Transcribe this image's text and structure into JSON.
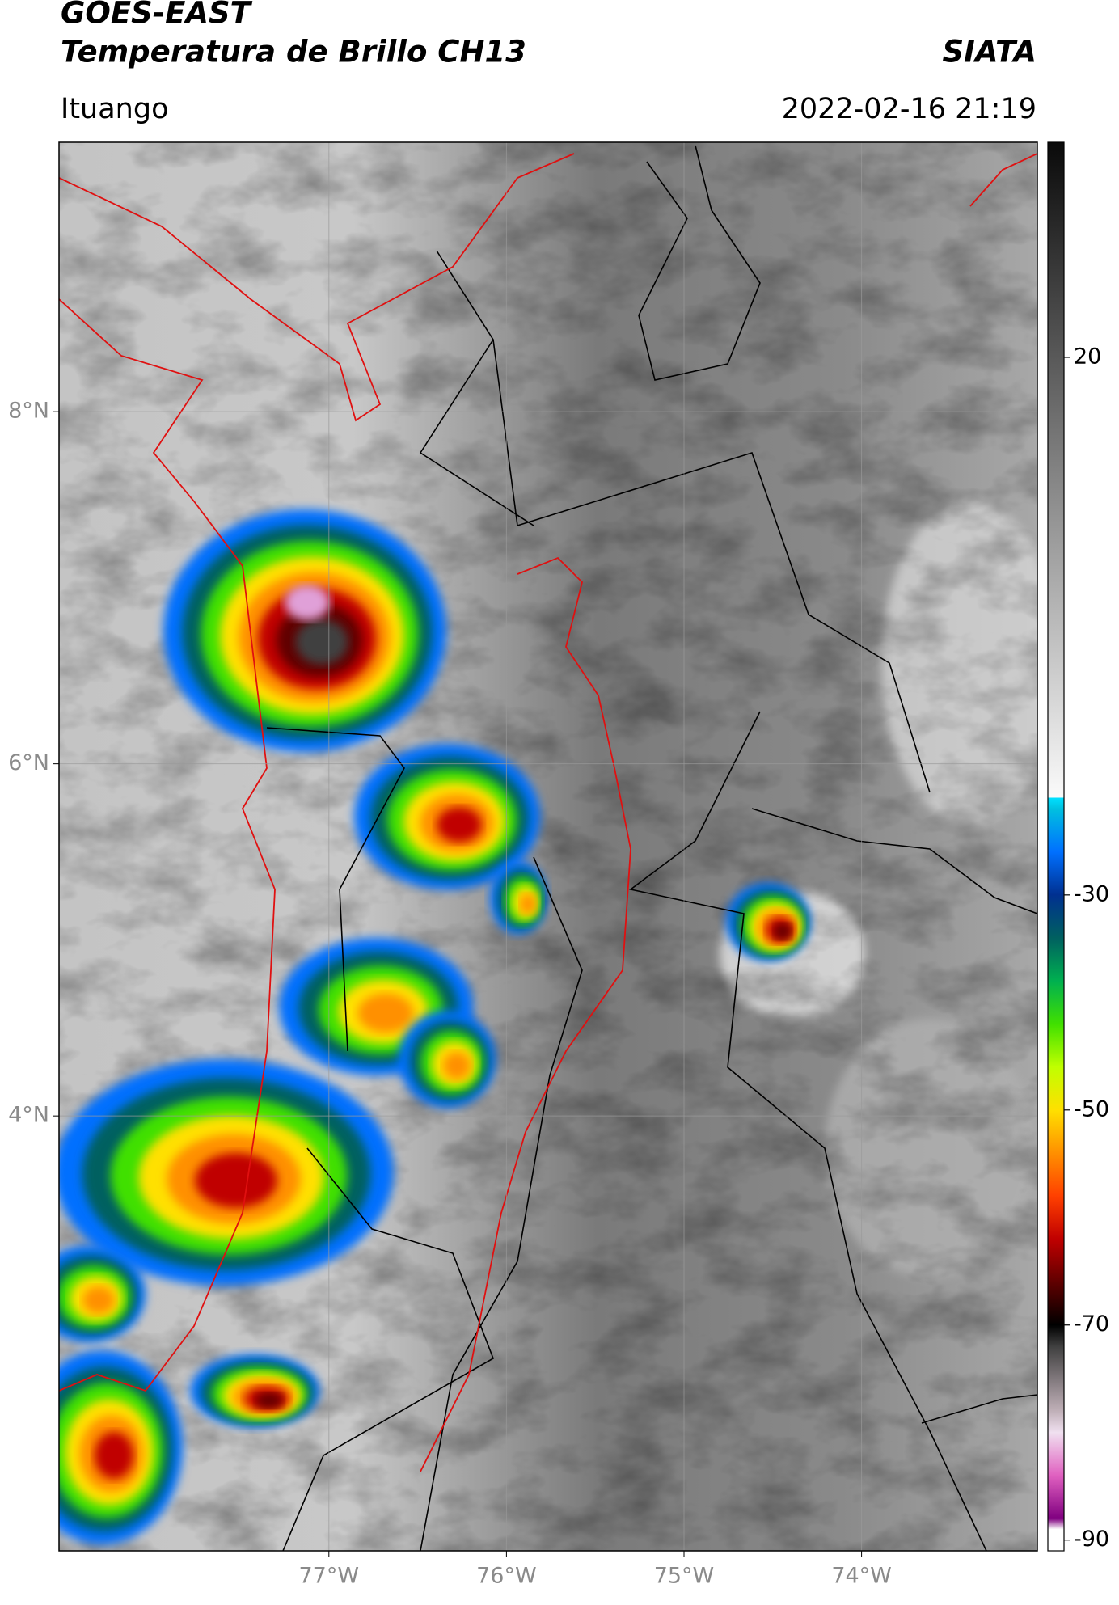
{
  "header": {
    "title": "GOES-EAST",
    "subtitle": "Temperatura de Brillo CH13",
    "source": "SIATA",
    "location": "Ituango",
    "timestamp": "2022-02-16 21:19"
  },
  "chart_data": {
    "type": "map",
    "xlim": [
      -78.52,
      -73.01
    ],
    "ylim": [
      1.53,
      9.53
    ],
    "xticks": [
      {
        "value": -77,
        "label": "77°W"
      },
      {
        "value": -76,
        "label": "76°W"
      },
      {
        "value": -75,
        "label": "75°W"
      },
      {
        "value": -74,
        "label": "74°W"
      }
    ],
    "yticks": [
      {
        "value": 8,
        "label": "8°N"
      },
      {
        "value": 6,
        "label": "6°N"
      },
      {
        "value": 4,
        "label": "4°N"
      }
    ],
    "grid": true,
    "colorbar": {
      "clim": [
        -91,
        40
      ],
      "ticks": [
        20,
        -30,
        -50,
        -70,
        -90
      ],
      "colormap": [
        {
          "value": -91,
          "color": "#ffffff"
        },
        {
          "value": -89,
          "color": "#ffffff"
        },
        {
          "value": -88,
          "color": "#800080"
        },
        {
          "value": -84,
          "color": "#e060c0"
        },
        {
          "value": -80,
          "color": "#f0e0f0"
        },
        {
          "value": -78,
          "color": "#c0b0b8"
        },
        {
          "value": -72,
          "color": "#404040"
        },
        {
          "value": -70,
          "color": "#000000"
        },
        {
          "value": -66,
          "color": "#600000"
        },
        {
          "value": -62,
          "color": "#c00000"
        },
        {
          "value": -58,
          "color": "#ff4000"
        },
        {
          "value": -54,
          "color": "#ff9000"
        },
        {
          "value": -50,
          "color": "#ffe000"
        },
        {
          "value": -46,
          "color": "#c0ff00"
        },
        {
          "value": -42,
          "color": "#40e000"
        },
        {
          "value": -38,
          "color": "#00b050"
        },
        {
          "value": -34,
          "color": "#006060"
        },
        {
          "value": -30,
          "color": "#003090"
        },
        {
          "value": -26,
          "color": "#0070ff"
        },
        {
          "value": -22,
          "color": "#00c0e0"
        },
        {
          "value": -21,
          "color": "#00e0ff"
        },
        {
          "value": -20.9,
          "color": "#fafafa"
        },
        {
          "value": 40,
          "color": "#0a0a0a"
        }
      ]
    }
  }
}
